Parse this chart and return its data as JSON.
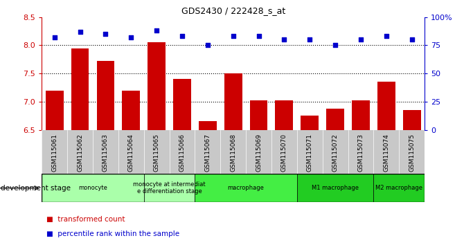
{
  "title": "GDS2430 / 222428_s_at",
  "samples": [
    "GSM115061",
    "GSM115062",
    "GSM115063",
    "GSM115064",
    "GSM115065",
    "GSM115066",
    "GSM115067",
    "GSM115068",
    "GSM115069",
    "GSM115070",
    "GSM115071",
    "GSM115072",
    "GSM115073",
    "GSM115074",
    "GSM115075"
  ],
  "bar_values": [
    7.2,
    7.95,
    7.72,
    7.2,
    8.06,
    7.4,
    6.65,
    7.5,
    7.02,
    7.02,
    6.75,
    6.88,
    7.02,
    7.35,
    6.85
  ],
  "dot_values": [
    82,
    87,
    85,
    82,
    88,
    83,
    75,
    83,
    83,
    80,
    80,
    75,
    80,
    83,
    80
  ],
  "ylim": [
    6.5,
    8.5
  ],
  "y2lim": [
    0,
    100
  ],
  "yticks": [
    6.5,
    7.0,
    7.5,
    8.0,
    8.5
  ],
  "y2ticks": [
    0,
    25,
    50,
    75,
    100
  ],
  "dotted_lines": [
    7.0,
    7.5,
    8.0
  ],
  "bar_color": "#CC0000",
  "dot_color": "#0000CC",
  "bg_color": "#FFFFFF",
  "groups": [
    {
      "label": "monocyte",
      "start": 0,
      "end": 4,
      "color": "#AAFFAA"
    },
    {
      "label": "monocyte at intermediat\ne differentiation stage",
      "start": 4,
      "end": 6,
      "color": "#AAFFAA"
    },
    {
      "label": "macrophage",
      "start": 6,
      "end": 10,
      "color": "#44EE44"
    },
    {
      "label": "M1 macrophage",
      "start": 10,
      "end": 13,
      "color": "#22CC22"
    },
    {
      "label": "M2 macrophage",
      "start": 13,
      "end": 15,
      "color": "#22CC22"
    }
  ],
  "legend_items": [
    {
      "label": "transformed count",
      "color": "#CC0000"
    },
    {
      "label": "percentile rank within the sample",
      "color": "#0000CC"
    }
  ],
  "dev_stage_label": "development stage",
  "xtick_bg": "#C8C8C8"
}
